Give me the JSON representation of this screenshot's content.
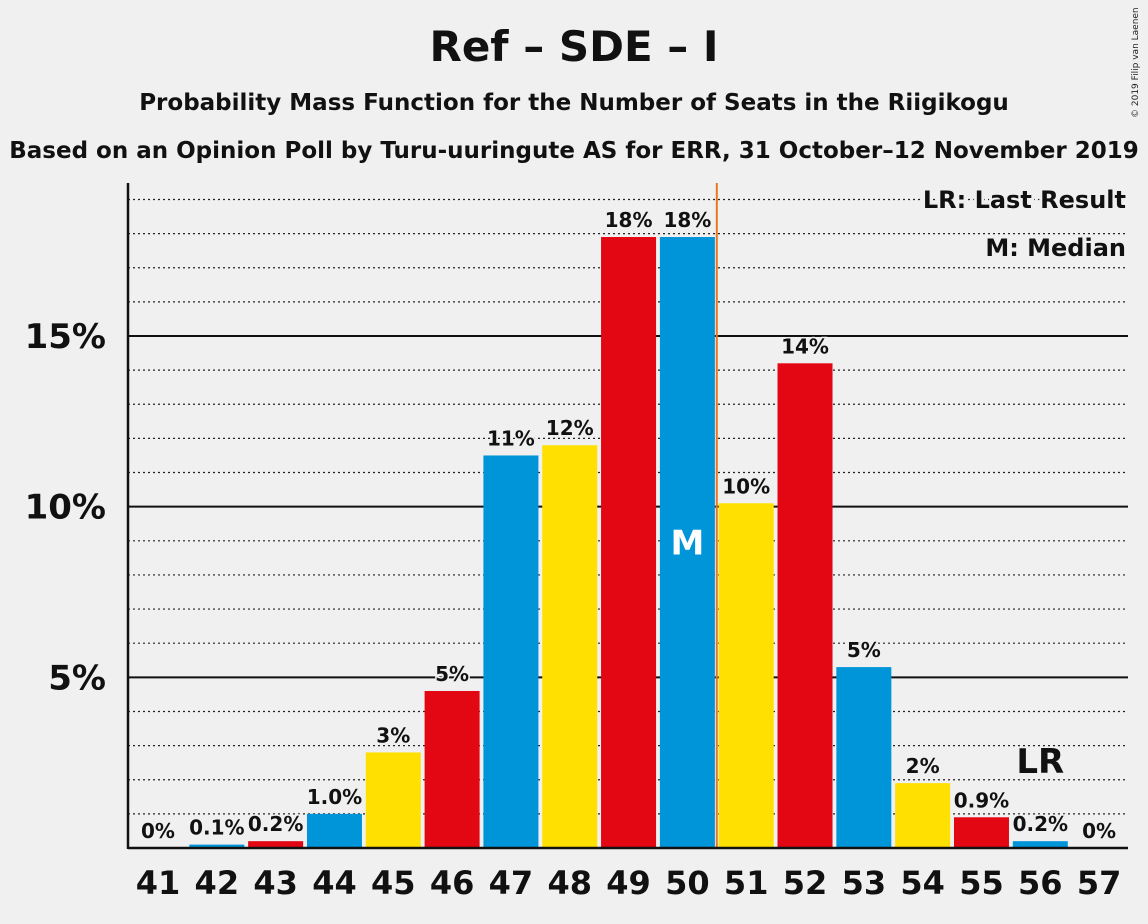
{
  "header": {
    "title": "Ref – SDE – I",
    "subtitle": "Probability Mass Function for the Number of Seats in the Riigikogu",
    "subtitle2": "Based on an Opinion Poll by Turu-uuringute AS for ERR, 31 October–12 November 2019",
    "copyright": "© 2019 Filip van Laenen"
  },
  "colors": {
    "red": "#e30613",
    "blue": "#0095d9",
    "yellow": "#ffe000",
    "last_result_line": "#e87722",
    "background": "#f0f0f0"
  },
  "chart_data": {
    "type": "bar",
    "categories": [
      "41",
      "42",
      "43",
      "44",
      "45",
      "46",
      "47",
      "48",
      "49",
      "50",
      "51",
      "52",
      "53",
      "54",
      "55",
      "56",
      "57"
    ],
    "values": [
      0,
      0.1,
      0.2,
      1.0,
      2.8,
      4.6,
      11.5,
      11.8,
      17.9,
      17.9,
      10.1,
      14.2,
      5.3,
      1.9,
      0.9,
      0.2,
      0
    ],
    "data_labels": [
      "0%",
      "0.1%",
      "0.2%",
      "1.0%",
      "3%",
      "5%",
      "11%",
      "12%",
      "18%",
      "18%",
      "10%",
      "14%",
      "5%",
      "2%",
      "0.9%",
      "0.2%",
      "0%"
    ],
    "bar_colors": [
      "red",
      "blue",
      "red",
      "blue",
      "yellow",
      "red",
      "blue",
      "yellow",
      "red",
      "blue",
      "yellow",
      "red",
      "blue",
      "yellow",
      "red",
      "blue",
      "red"
    ],
    "y_ticks": [
      5,
      10,
      15
    ],
    "y_tick_labels": [
      "5%",
      "10%",
      "15%"
    ],
    "ylim": [
      0,
      19.5
    ],
    "median_seat": "50",
    "median_label": "M",
    "last_result_seat": "56",
    "last_result_label": "LR",
    "majority_line_after_seat": "50",
    "legend": [
      "LR: Last Result",
      "M: Median"
    ],
    "legend_position": "top-right",
    "grid": true
  }
}
